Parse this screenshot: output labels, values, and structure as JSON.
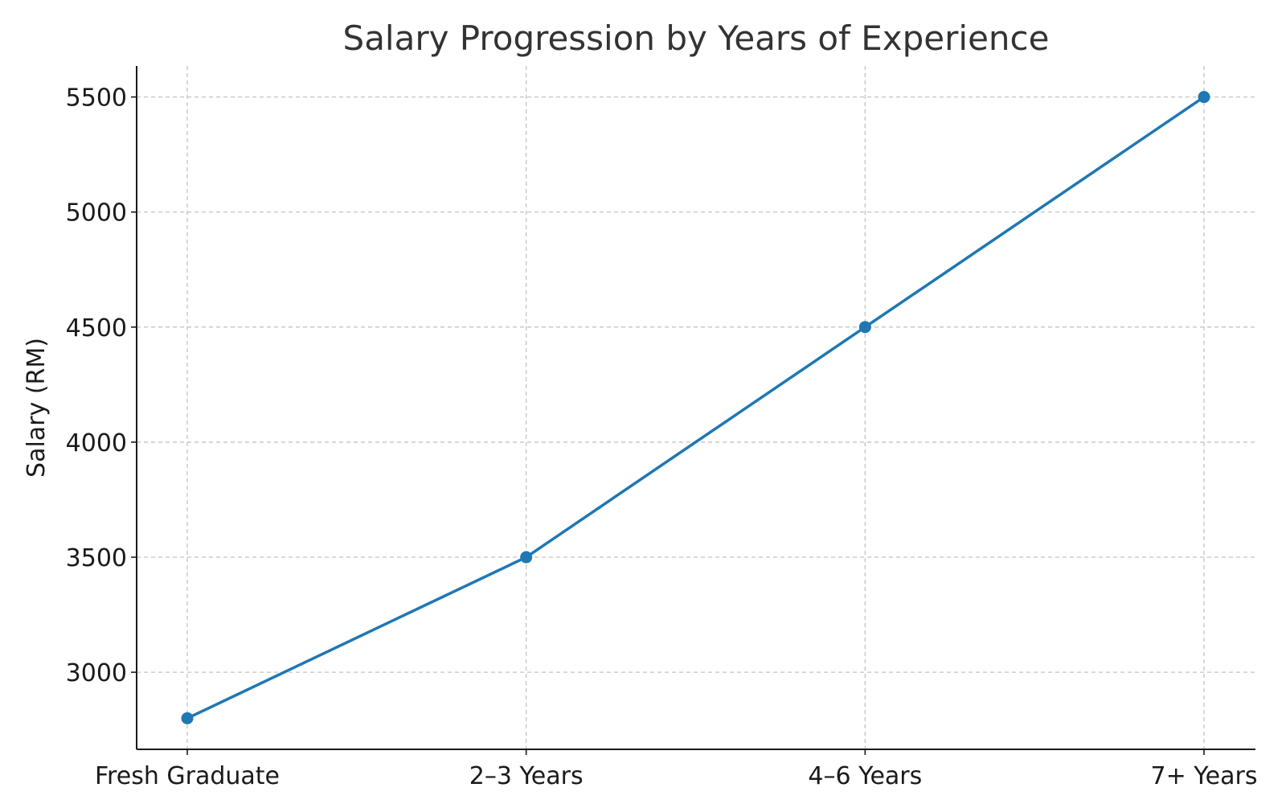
{
  "chart_data": {
    "type": "line",
    "title": "Salary Progression by Years of Experience",
    "xlabel": "",
    "ylabel": "Salary (RM)",
    "categories": [
      "Fresh Graduate",
      "2–3 Years",
      "4–6 Years",
      "7+ Years"
    ],
    "series": [
      {
        "values": [
          2800,
          3500,
          4500,
          5500
        ],
        "color": "#1f77b4"
      }
    ],
    "y_ticks": [
      3000,
      3500,
      4000,
      4500,
      5000,
      5500
    ],
    "ylim": [
      2665,
      5635
    ],
    "grid": true,
    "legend": "none"
  }
}
